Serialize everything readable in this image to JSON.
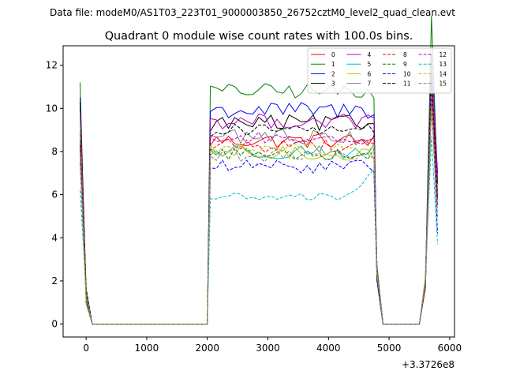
{
  "figure": {
    "suptitle": "Data file: modeM0/AS1T03_223T01_9000003850_26752cztM0_level2_quad_clean.evt"
  },
  "chart_data": {
    "type": "line",
    "title": "Quadrant 0 module wise count rates with 100.0s bins.",
    "xlabel": "",
    "ylabel": "",
    "x_offset_label": "+3.3726e8",
    "xlim": [
      -380,
      6080
    ],
    "ylim": [
      -0.6,
      12.9
    ],
    "xticks": [
      0,
      1000,
      2000,
      3000,
      4000,
      5000,
      6000
    ],
    "xtick_labels": [
      "0",
      "1000",
      "2000",
      "3000",
      "4000",
      "5000",
      "6000"
    ],
    "yticks": [
      0,
      2,
      4,
      6,
      8,
      10,
      12
    ],
    "ytick_labels": [
      "0",
      "2",
      "4",
      "6",
      "8",
      "10",
      "12"
    ],
    "grid": false,
    "legend_placement": "top-right",
    "legend_columns": 4,
    "series": [
      {
        "name": "0",
        "color": "#ff0000",
        "style": "solid",
        "start": 10.0,
        "plateau_mean": 8.5,
        "plateau_amp": 0.35,
        "end": 7.0
      },
      {
        "name": "1",
        "color": "#008000",
        "style": "solid",
        "start": 11.2,
        "plateau_mean": 10.8,
        "plateau_amp": 0.35,
        "end": 6.5
      },
      {
        "name": "2",
        "color": "#0000ff",
        "style": "solid",
        "start": 10.5,
        "plateau_mean": 9.9,
        "plateau_amp": 0.4,
        "end": 7.0
      },
      {
        "name": "3",
        "color": "#000000",
        "style": "solid",
        "start": 10.3,
        "plateau_mean": 9.3,
        "plateau_amp": 0.4,
        "end": 6.5
      },
      {
        "name": "4",
        "color": "#bf00bf",
        "style": "solid",
        "start": 9.9,
        "plateau_mean": 9.4,
        "plateau_amp": 0.35,
        "end": 6.8
      },
      {
        "name": "5",
        "color": "#00bfbf",
        "style": "solid",
        "start": 9.0,
        "plateau_mean": 8.0,
        "plateau_amp": 0.35,
        "end": 6.0
      },
      {
        "name": "6",
        "color": "#bfbf00",
        "style": "solid",
        "start": 8.5,
        "plateau_mean": 7.9,
        "plateau_amp": 0.35,
        "end": 5.5
      },
      {
        "name": "7",
        "color": "#808080",
        "style": "solid",
        "start": 9.5,
        "plateau_mean": 8.7,
        "plateau_amp": 0.4,
        "end": 6.2
      },
      {
        "name": "8",
        "color": "#ff0000",
        "style": "dashed",
        "start": 8.8,
        "plateau_mean": 8.3,
        "plateau_amp": 0.35,
        "end": 5.8
      },
      {
        "name": "9",
        "color": "#008000",
        "style": "dashed",
        "start": 8.5,
        "plateau_mean": 7.9,
        "plateau_amp": 0.3,
        "end": 5.4
      },
      {
        "name": "10",
        "color": "#0000ff",
        "style": "dashed",
        "start": 7.5,
        "plateau_mean": 7.3,
        "plateau_amp": 0.3,
        "end": 4.2
      },
      {
        "name": "11",
        "color": "#000000",
        "style": "dashed",
        "start": 8.3,
        "plateau_mean": 9.0,
        "plateau_amp": 0.3,
        "end": 5.8
      },
      {
        "name": "12",
        "color": "#bf00bf",
        "style": "dashed",
        "start": 8.2,
        "plateau_mean": 8.6,
        "plateau_amp": 0.3,
        "end": 5.5
      },
      {
        "name": "13",
        "color": "#00bfbf",
        "style": "dashed",
        "start": 6.2,
        "plateau_mean": 5.9,
        "plateau_amp": 0.18,
        "end": 3.7
      },
      {
        "name": "14",
        "color": "#bfbf00",
        "style": "dashed",
        "start": 7.8,
        "plateau_mean": 8.1,
        "plateau_amp": 0.3,
        "end": 5.0
      },
      {
        "name": "15",
        "color": "#808080",
        "style": "dashed",
        "start": 7.9,
        "plateau_mean": 7.8,
        "plateau_amp": 0.3,
        "end": 4.9
      }
    ]
  }
}
